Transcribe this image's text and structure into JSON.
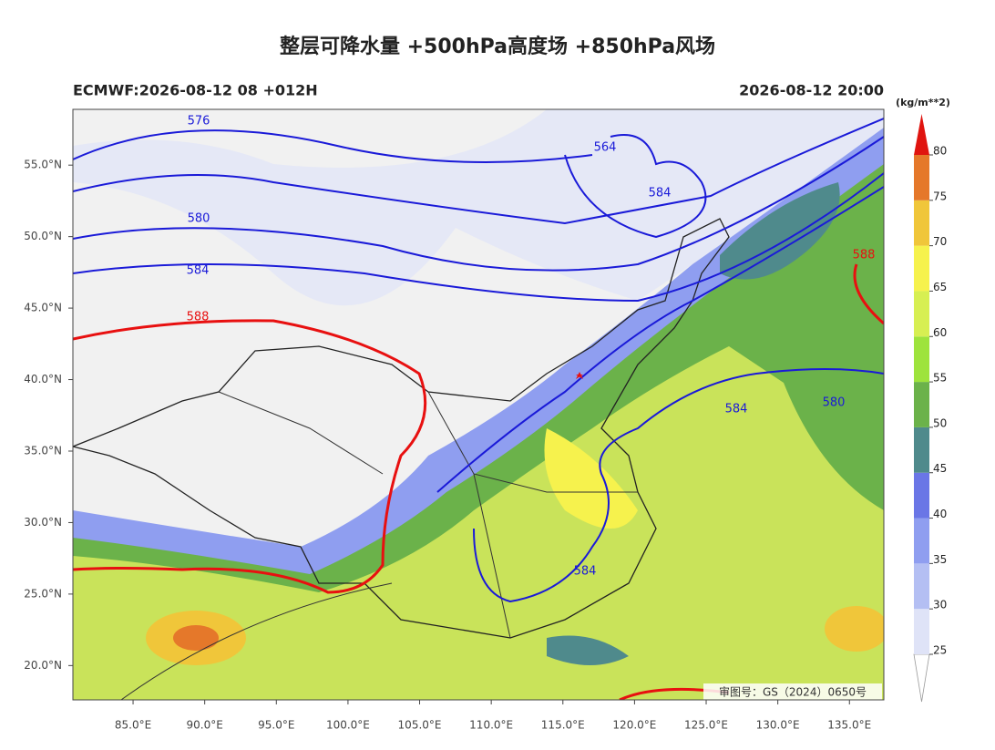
{
  "header": {
    "title": "整层可降水量 +500hPa高度场 +850hPa风场",
    "model_run": "ECMWF:2026-08-12 08 +012H",
    "valid_time": "2026-08-12 20:00"
  },
  "map": {
    "lon_range": [
      80.8,
      137.4
    ],
    "lat_range": [
      17.6,
      58.9
    ],
    "lon_ticks": [
      {
        "value": 85,
        "label": "85.0°E"
      },
      {
        "value": 90,
        "label": "90.0°E"
      },
      {
        "value": 95,
        "label": "95.0°E"
      },
      {
        "value": 100,
        "label": "100.0°E"
      },
      {
        "value": 105,
        "label": "105.0°E"
      },
      {
        "value": 110,
        "label": "110.0°E"
      },
      {
        "value": 115,
        "label": "115.0°E"
      },
      {
        "value": 120,
        "label": "120.0°E"
      },
      {
        "value": 125,
        "label": "125.0°E"
      },
      {
        "value": 130,
        "label": "130.0°E"
      },
      {
        "value": 135,
        "label": "135.0°E"
      }
    ],
    "lat_ticks": [
      {
        "value": 55,
        "label": "55.0°N"
      },
      {
        "value": 50,
        "label": "50.0°N"
      },
      {
        "value": 45,
        "label": "45.0°N"
      },
      {
        "value": 40,
        "label": "40.0°N"
      },
      {
        "value": 35,
        "label": "35.0°N"
      },
      {
        "value": 30,
        "label": "30.0°N"
      },
      {
        "value": 25,
        "label": "25.0°N"
      },
      {
        "value": 20,
        "label": "20.0°N"
      }
    ],
    "contour_labels": [
      "576",
      "580",
      "584",
      "588",
      "564",
      "584",
      "588",
      "584",
      "580",
      "584"
    ],
    "watermark": "审图号：GS（2024）0650号"
  },
  "colorbar": {
    "unit": "(kg/m**2)",
    "levels": [
      25,
      30,
      35,
      40,
      45,
      50,
      55,
      60,
      65,
      70,
      75,
      80
    ],
    "colors": [
      "#dfe3f7",
      "#b4bff3",
      "#8f9ef0",
      "#6a76e6",
      "#4f8a8c",
      "#6bb24a",
      "#9ee33c",
      "#d7ef52",
      "#f6f24d",
      "#f0c63a",
      "#e5782a"
    ],
    "over_color": "#e0140f"
  }
}
